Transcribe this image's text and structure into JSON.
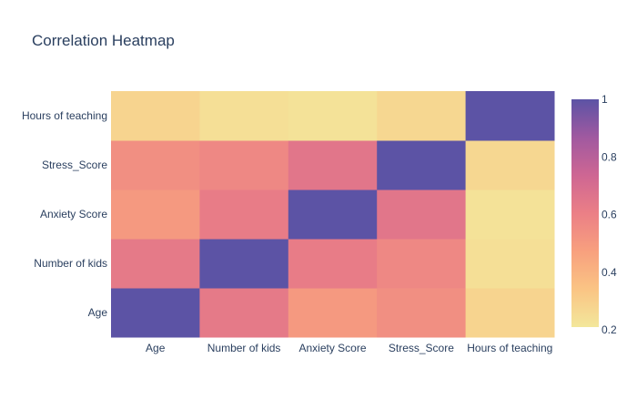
{
  "chart_data": {
    "type": "heatmap",
    "title": "Correlation Heatmap",
    "x_categories": [
      "Age",
      "Number of kids",
      "Anxiety Score",
      "Stress_Score",
      "Hours of teaching"
    ],
    "y_categories": [
      "Age",
      "Number of kids",
      "Anxiety Score",
      "Stress_Score",
      "Hours of teaching"
    ],
    "z": [
      [
        1.0,
        0.63,
        0.5,
        0.54,
        0.28
      ],
      [
        0.63,
        1.0,
        0.62,
        0.57,
        0.24
      ],
      [
        0.5,
        0.62,
        1.0,
        0.65,
        0.23
      ],
      [
        0.54,
        0.57,
        0.65,
        1.0,
        0.27
      ],
      [
        0.28,
        0.24,
        0.23,
        0.27,
        1.0
      ]
    ],
    "zmin": 0.21,
    "zmax": 1.0,
    "colorbar": {
      "ticks": [
        0.2,
        0.4,
        0.6,
        0.8,
        1
      ],
      "tick_labels": [
        "0.2",
        "0.4",
        "0.6",
        "0.8",
        "1"
      ],
      "colors": [
        "#f3e79b",
        "#fac484",
        "#f8a07e",
        "#eb7f86",
        "#ce6693",
        "#a059a0",
        "#5c53a5"
      ]
    },
    "legend": "colorbar-right"
  }
}
